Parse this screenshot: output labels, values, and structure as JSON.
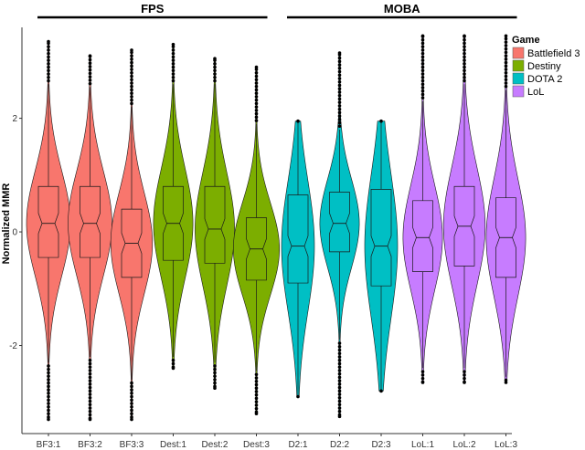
{
  "chart_data": {
    "type": "violin",
    "title": "",
    "xlabel": "",
    "ylabel": "Normalized MMR",
    "ylim": [
      -3.55,
      3.6
    ],
    "yticks": [
      -2,
      0,
      2
    ],
    "grid": false,
    "legend_position": "top-right",
    "legend": {
      "title": "Game",
      "entries": [
        {
          "name": "Battlefield 3",
          "color": "#F8766D"
        },
        {
          "name": "Destiny",
          "color": "#7CAE00"
        },
        {
          "name": "DOTA 2",
          "color": "#00BFC4"
        },
        {
          "name": "LoL",
          "color": "#C77CFF"
        }
      ]
    },
    "groups": [
      {
        "label": "FPS",
        "categories": [
          "BF3:1",
          "BF3:2",
          "BF3:3",
          "Dest:1",
          "Dest:2",
          "Dest:3"
        ]
      },
      {
        "label": "MOBA",
        "categories": [
          "D2:1",
          "D2:2",
          "D2:3",
          "LoL:1",
          "LoL:2",
          "LoL:3"
        ]
      }
    ],
    "categories": [
      "BF3:1",
      "BF3:2",
      "BF3:3",
      "Dest:1",
      "Dest:2",
      "Dest:3",
      "D2:1",
      "D2:2",
      "D2:3",
      "LoL:1",
      "LoL:2",
      "LoL:3"
    ],
    "series": [
      {
        "category": "BF3:1",
        "game": "Battlefield 3",
        "median": 0.15,
        "q1": -0.45,
        "q3": 0.8,
        "whisker_low": -2.3,
        "whisker_high": 2.6,
        "min": -3.3,
        "max": 3.35,
        "width_scale": 1.0
      },
      {
        "category": "BF3:2",
        "game": "Battlefield 3",
        "median": 0.15,
        "q1": -0.45,
        "q3": 0.8,
        "whisker_low": -2.2,
        "whisker_high": 2.55,
        "min": -3.3,
        "max": 3.1,
        "width_scale": 1.0
      },
      {
        "category": "BF3:3",
        "game": "Battlefield 3",
        "median": -0.2,
        "q1": -0.8,
        "q3": 0.4,
        "whisker_low": -2.6,
        "whisker_high": 2.2,
        "min": -3.3,
        "max": 3.2,
        "width_scale": 0.95
      },
      {
        "category": "Dest:1",
        "game": "Destiny",
        "median": 0.15,
        "q1": -0.5,
        "q3": 0.8,
        "whisker_low": -2.2,
        "whisker_high": 2.6,
        "min": -2.4,
        "max": 3.3,
        "width_scale": 0.9
      },
      {
        "category": "Dest:2",
        "game": "Destiny",
        "median": 0.05,
        "q1": -0.55,
        "q3": 0.8,
        "whisker_low": -2.3,
        "whisker_high": 2.6,
        "min": -2.75,
        "max": 3.05,
        "width_scale": 0.9
      },
      {
        "category": "Dest:3",
        "game": "Destiny",
        "median": -0.3,
        "q1": -0.85,
        "q3": 0.25,
        "whisker_low": -2.45,
        "whisker_high": 1.9,
        "min": -3.2,
        "max": 2.9,
        "width_scale": 1.05
      },
      {
        "category": "D2:1",
        "game": "DOTA 2",
        "median": -0.25,
        "q1": -0.9,
        "q3": 0.65,
        "whisker_low": -2.9,
        "whisker_high": 1.95,
        "min": -2.9,
        "max": 1.95,
        "width_scale": 0.75
      },
      {
        "category": "D2:2",
        "game": "DOTA 2",
        "median": 0.15,
        "q1": -0.35,
        "q3": 0.7,
        "whisker_low": -1.9,
        "whisker_high": 1.8,
        "min": -3.25,
        "max": 3.15,
        "width_scale": 0.9
      },
      {
        "category": "D2:3",
        "game": "DOTA 2",
        "median": -0.25,
        "q1": -0.95,
        "q3": 0.75,
        "whisker_low": -2.8,
        "whisker_high": 1.95,
        "min": -2.8,
        "max": 1.95,
        "width_scale": 0.75
      },
      {
        "category": "LoL:1",
        "game": "LoL",
        "median": -0.1,
        "q1": -0.7,
        "q3": 0.55,
        "whisker_low": -2.4,
        "whisker_high": 2.3,
        "min": -2.65,
        "max": 3.45,
        "width_scale": 0.9
      },
      {
        "category": "LoL:2",
        "game": "LoL",
        "median": 0.1,
        "q1": -0.6,
        "q3": 0.8,
        "whisker_low": -2.4,
        "whisker_high": 2.6,
        "min": -2.65,
        "max": 3.45,
        "width_scale": 0.95
      },
      {
        "category": "LoL:3",
        "game": "LoL",
        "median": -0.1,
        "q1": -0.8,
        "q3": 0.6,
        "whisker_low": -2.55,
        "whisker_high": 2.5,
        "min": -2.65,
        "max": 3.45,
        "width_scale": 0.9
      }
    ]
  }
}
